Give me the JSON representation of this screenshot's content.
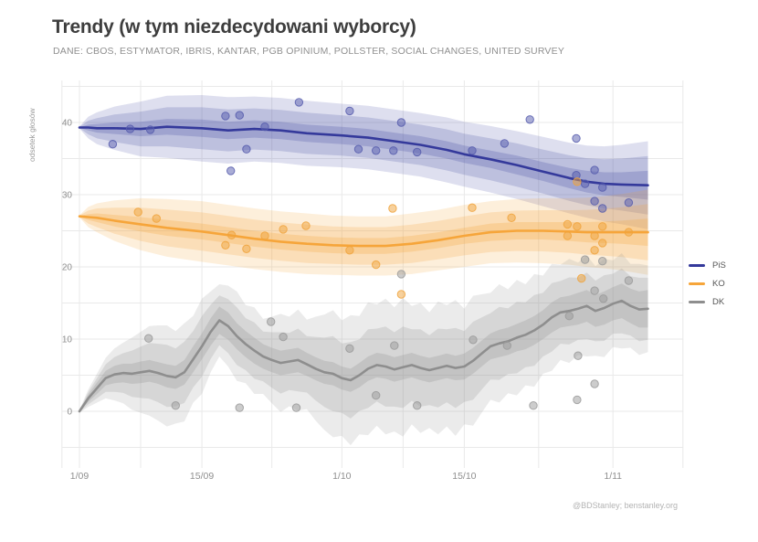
{
  "header": {
    "title": "Trendy (w tym niezdecydowani wyborcy)",
    "subtitle": "DANE: CBOS, ESTYMATOR, IBRIS, KANTAR, PGB OPINIUM, POLLSTER, SOCIAL CHANGES, UNITED SURVEY"
  },
  "footer": {
    "credit": "@BDStanley; benstanley.org"
  },
  "colors": {
    "grid": "#e9e9e9",
    "tick_text": "#8f8f8f",
    "title_text": "#3d3d3d",
    "subtitle_text": "#8f8f8f",
    "legend_text": "#555555",
    "footer_text": "#b3b3b3"
  },
  "chart_data": {
    "type": "line",
    "title": "Trendy (w tym niezdecydowani wyborcy)",
    "subtitle": "DANE: CBOS, ESTYMATOR, IBRIS, KANTAR, PGB OPINIUM, POLLSTER, SOCIAL CHANGES, UNITED SURVEY",
    "ylabel": "odsetek głosów",
    "xlabel": "",
    "legend_position": "right",
    "grid": true,
    "x_axis": {
      "unit": "days since 1/09",
      "ticks": [
        {
          "day": 0,
          "label": "1/09"
        },
        {
          "day": 14,
          "label": "15/09"
        },
        {
          "day": 30,
          "label": "1/10"
        },
        {
          "day": 44,
          "label": "15/10"
        },
        {
          "day": 61,
          "label": "1/11"
        }
      ],
      "gridline_days": [
        -2,
        0,
        7,
        14,
        22,
        30,
        37,
        44,
        52.5,
        61,
        69
      ]
    },
    "y_axis": {
      "label": "odsetek głosów",
      "tick_values": [
        0,
        10,
        20,
        30,
        40
      ],
      "gridline_values": [
        -5,
        0,
        5,
        10,
        15,
        20,
        25,
        30,
        35,
        40,
        45
      ],
      "range": [
        -7.8,
        45.8
      ]
    },
    "series": [
      {
        "name": "PiS",
        "line_color": "#34399b",
        "band_color": "#4a50a5",
        "dot_color": "#565cad",
        "points": [
          [
            0,
            39.3,
            0.05,
            0.15
          ],
          [
            1,
            39.3,
            0.4,
            1.5
          ],
          [
            2,
            39.2,
            0.6,
            2.2
          ],
          [
            4,
            39.2,
            0.8,
            3.0
          ],
          [
            7,
            39.1,
            1.0,
            3.8
          ],
          [
            10,
            39.4,
            1.1,
            4.3
          ],
          [
            14,
            39.2,
            1.2,
            4.6
          ],
          [
            17,
            38.9,
            1.2,
            4.6
          ],
          [
            20,
            39.1,
            1.2,
            4.5
          ],
          [
            23,
            38.9,
            1.2,
            4.5
          ],
          [
            26,
            38.5,
            1.2,
            4.5
          ],
          [
            30,
            38.2,
            1.2,
            4.4
          ],
          [
            33,
            37.9,
            1.2,
            4.4
          ],
          [
            36,
            37.4,
            1.2,
            4.4
          ],
          [
            39,
            36.9,
            1.2,
            4.4
          ],
          [
            42,
            36.2,
            1.2,
            4.5
          ],
          [
            44,
            35.6,
            1.2,
            4.5
          ],
          [
            47,
            34.9,
            1.2,
            4.6
          ],
          [
            50,
            34.1,
            1.3,
            4.7
          ],
          [
            53,
            33.2,
            1.3,
            4.8
          ],
          [
            56,
            32.3,
            1.4,
            4.9
          ],
          [
            58,
            31.8,
            1.5,
            5.0
          ],
          [
            60,
            31.5,
            1.6,
            5.2
          ],
          [
            62,
            31.4,
            1.7,
            5.5
          ],
          [
            65,
            31.3,
            2.0,
            6.1
          ]
        ],
        "dots": [
          [
            3.8,
            37.0
          ],
          [
            5.8,
            39.1
          ],
          [
            8.1,
            39.0
          ],
          [
            16.7,
            40.9
          ],
          [
            17.3,
            33.3
          ],
          [
            18.3,
            41.0
          ],
          [
            19.1,
            36.3
          ],
          [
            21.2,
            39.4
          ],
          [
            25.1,
            42.8
          ],
          [
            30.9,
            41.6
          ],
          [
            31.9,
            36.3
          ],
          [
            33.9,
            36.1
          ],
          [
            35.9,
            36.1
          ],
          [
            36.8,
            40.0
          ],
          [
            38.6,
            35.9
          ],
          [
            44.9,
            36.1
          ],
          [
            48.6,
            37.1
          ],
          [
            51.5,
            40.4
          ],
          [
            56.8,
            37.8
          ],
          [
            56.8,
            32.7
          ],
          [
            57.8,
            31.5
          ],
          [
            58.9,
            33.4
          ],
          [
            58.9,
            29.1
          ],
          [
            59.8,
            31.0
          ],
          [
            59.8,
            28.1
          ],
          [
            62.8,
            28.9
          ]
        ]
      },
      {
        "name": "KO",
        "line_color": "#f6a53a",
        "band_color": "#f5a53a",
        "dot_color": "#f0a33c",
        "points": [
          [
            0,
            27.0,
            0.05,
            0.15
          ],
          [
            1,
            26.9,
            0.4,
            1.4
          ],
          [
            2,
            26.8,
            0.6,
            2.0
          ],
          [
            4,
            26.4,
            0.8,
            2.8
          ],
          [
            7,
            25.9,
            1.0,
            3.6
          ],
          [
            10,
            25.4,
            1.1,
            4.0
          ],
          [
            14,
            24.9,
            1.1,
            4.2
          ],
          [
            17,
            24.4,
            1.1,
            4.2
          ],
          [
            20,
            23.9,
            1.1,
            4.2
          ],
          [
            23,
            23.5,
            1.1,
            4.2
          ],
          [
            26,
            23.2,
            1.1,
            4.2
          ],
          [
            29,
            23.0,
            1.1,
            4.1
          ],
          [
            32,
            22.9,
            1.1,
            4.1
          ],
          [
            35,
            22.9,
            1.1,
            4.1
          ],
          [
            38,
            23.2,
            1.1,
            4.2
          ],
          [
            41,
            23.7,
            1.1,
            4.2
          ],
          [
            44,
            24.3,
            1.1,
            4.3
          ],
          [
            47,
            24.8,
            1.2,
            4.3
          ],
          [
            50,
            25.0,
            1.2,
            4.4
          ],
          [
            53,
            25.0,
            1.2,
            4.5
          ],
          [
            56,
            24.9,
            1.3,
            4.6
          ],
          [
            58,
            24.8,
            1.4,
            4.8
          ],
          [
            60,
            24.8,
            1.5,
            5.0
          ],
          [
            62,
            24.8,
            1.6,
            5.3
          ],
          [
            65,
            24.8,
            1.9,
            5.9
          ]
        ],
        "dots": [
          [
            6.7,
            27.6
          ],
          [
            8.8,
            26.7
          ],
          [
            16.7,
            23.0
          ],
          [
            17.4,
            24.4
          ],
          [
            19.1,
            22.5
          ],
          [
            21.2,
            24.3
          ],
          [
            23.3,
            25.2
          ],
          [
            25.9,
            25.7
          ],
          [
            30.9,
            22.3
          ],
          [
            33.9,
            20.3
          ],
          [
            35.8,
            28.1
          ],
          [
            36.8,
            16.2
          ],
          [
            44.9,
            28.2
          ],
          [
            49.4,
            26.8
          ],
          [
            55.8,
            25.9
          ],
          [
            55.8,
            24.3
          ],
          [
            56.9,
            31.8
          ],
          [
            56.9,
            25.6
          ],
          [
            57.4,
            18.4
          ],
          [
            58.9,
            24.3
          ],
          [
            58.9,
            22.3
          ],
          [
            59.8,
            25.6
          ],
          [
            59.8,
            23.3
          ],
          [
            62.8,
            24.8
          ]
        ]
      },
      {
        "name": "DK",
        "line_color": "#8e8e8e",
        "band_color": "#8f8f8f",
        "dot_color": "#9a9a9a",
        "points": [
          [
            0,
            0,
            0.05,
            0.2
          ],
          [
            1,
            1.8,
            0.5,
            1.2
          ],
          [
            2,
            3.2,
            0.8,
            2.0
          ],
          [
            3,
            4.6,
            1.0,
            2.8
          ],
          [
            4,
            5.1,
            1.2,
            3.6
          ],
          [
            5,
            5.3,
            1.3,
            4.2
          ],
          [
            6,
            5.2,
            1.4,
            5.0
          ],
          [
            7,
            5.4,
            1.5,
            5.6
          ],
          [
            8,
            5.6,
            1.5,
            6.2
          ],
          [
            9,
            5.3,
            1.5,
            6.6
          ],
          [
            10,
            4.9,
            1.6,
            7.0
          ],
          [
            11,
            4.7,
            1.6,
            6.4
          ],
          [
            12,
            5.4,
            1.7,
            6.8
          ],
          [
            13,
            7.2,
            1.8,
            6.0
          ],
          [
            14,
            9.0,
            1.8,
            6.6
          ],
          [
            15,
            11.0,
            1.9,
            5.6
          ],
          [
            16,
            12.6,
            1.9,
            5.0
          ],
          [
            17,
            11.8,
            1.9,
            5.6
          ],
          [
            18,
            10.4,
            1.8,
            6.2
          ],
          [
            19,
            9.3,
            1.8,
            5.4
          ],
          [
            20,
            8.4,
            1.8,
            6.0
          ],
          [
            21,
            7.6,
            1.7,
            5.2
          ],
          [
            22,
            7.1,
            1.7,
            6.0
          ],
          [
            23,
            6.7,
            1.7,
            6.8
          ],
          [
            24,
            6.9,
            1.7,
            6.2
          ],
          [
            25,
            7.1,
            1.7,
            7.0
          ],
          [
            26,
            6.5,
            1.6,
            6.2
          ],
          [
            27,
            5.9,
            1.6,
            7.2
          ],
          [
            28,
            5.4,
            1.6,
            8.0
          ],
          [
            29,
            5.2,
            1.6,
            8.8
          ],
          [
            30,
            4.6,
            1.6,
            8.0
          ],
          [
            31,
            4.3,
            1.6,
            9.0
          ],
          [
            32,
            5.0,
            1.7,
            8.2
          ],
          [
            33,
            5.9,
            1.7,
            9.2
          ],
          [
            34,
            6.4,
            1.7,
            8.4
          ],
          [
            35,
            6.2,
            1.7,
            9.4
          ],
          [
            36,
            5.8,
            1.7,
            8.6
          ],
          [
            37,
            6.1,
            1.7,
            9.6
          ],
          [
            38,
            6.4,
            1.7,
            8.2
          ],
          [
            39,
            6.0,
            1.7,
            9.0
          ],
          [
            40,
            5.7,
            1.7,
            8.0
          ],
          [
            41,
            6.0,
            1.7,
            9.2
          ],
          [
            42,
            6.3,
            1.7,
            8.4
          ],
          [
            43,
            6.0,
            1.7,
            9.4
          ],
          [
            44,
            6.2,
            1.8,
            8.0
          ],
          [
            45,
            7.0,
            1.8,
            9.0
          ],
          [
            46,
            8.0,
            1.8,
            8.2
          ],
          [
            47,
            9.0,
            1.8,
            7.4
          ],
          [
            48,
            9.4,
            1.9,
            8.2
          ],
          [
            49,
            9.7,
            1.9,
            7.2
          ],
          [
            50,
            10.2,
            1.9,
            8.0
          ],
          [
            51,
            10.6,
            2.0,
            7.0
          ],
          [
            52,
            11.2,
            2.0,
            7.8
          ],
          [
            53,
            12.0,
            2.0,
            6.8
          ],
          [
            54,
            13.0,
            2.1,
            7.4
          ],
          [
            55,
            13.7,
            2.1,
            6.6
          ],
          [
            56,
            13.9,
            2.1,
            7.2
          ],
          [
            57,
            14.2,
            2.2,
            6.4
          ],
          [
            58,
            14.6,
            2.2,
            7.0
          ],
          [
            59,
            13.9,
            2.2,
            6.2
          ],
          [
            60,
            14.3,
            2.3,
            6.8
          ],
          [
            61,
            14.9,
            2.3,
            6.0
          ],
          [
            62,
            15.3,
            2.4,
            6.6
          ],
          [
            63,
            14.6,
            2.4,
            5.8
          ],
          [
            64,
            14.1,
            2.5,
            6.3
          ],
          [
            65,
            14.2,
            2.6,
            6.0
          ]
        ],
        "dots": [
          [
            7.9,
            10.1
          ],
          [
            11,
            0.8
          ],
          [
            18.3,
            0.5
          ],
          [
            21.9,
            12.4
          ],
          [
            23.3,
            10.3
          ],
          [
            24.8,
            0.5
          ],
          [
            30.9,
            8.7
          ],
          [
            33.9,
            2.2
          ],
          [
            36,
            9.1
          ],
          [
            36.8,
            19.0
          ],
          [
            38.6,
            0.8
          ],
          [
            45,
            9.9
          ],
          [
            48.9,
            9.1
          ],
          [
            51.9,
            0.8
          ],
          [
            56,
            13.2
          ],
          [
            56.9,
            1.6
          ],
          [
            57,
            7.7
          ],
          [
            57.8,
            21.0
          ],
          [
            58.9,
            16.7
          ],
          [
            58.9,
            3.8
          ],
          [
            59.8,
            20.8
          ],
          [
            59.9,
            15.6
          ],
          [
            62.8,
            18.1
          ]
        ]
      }
    ]
  }
}
